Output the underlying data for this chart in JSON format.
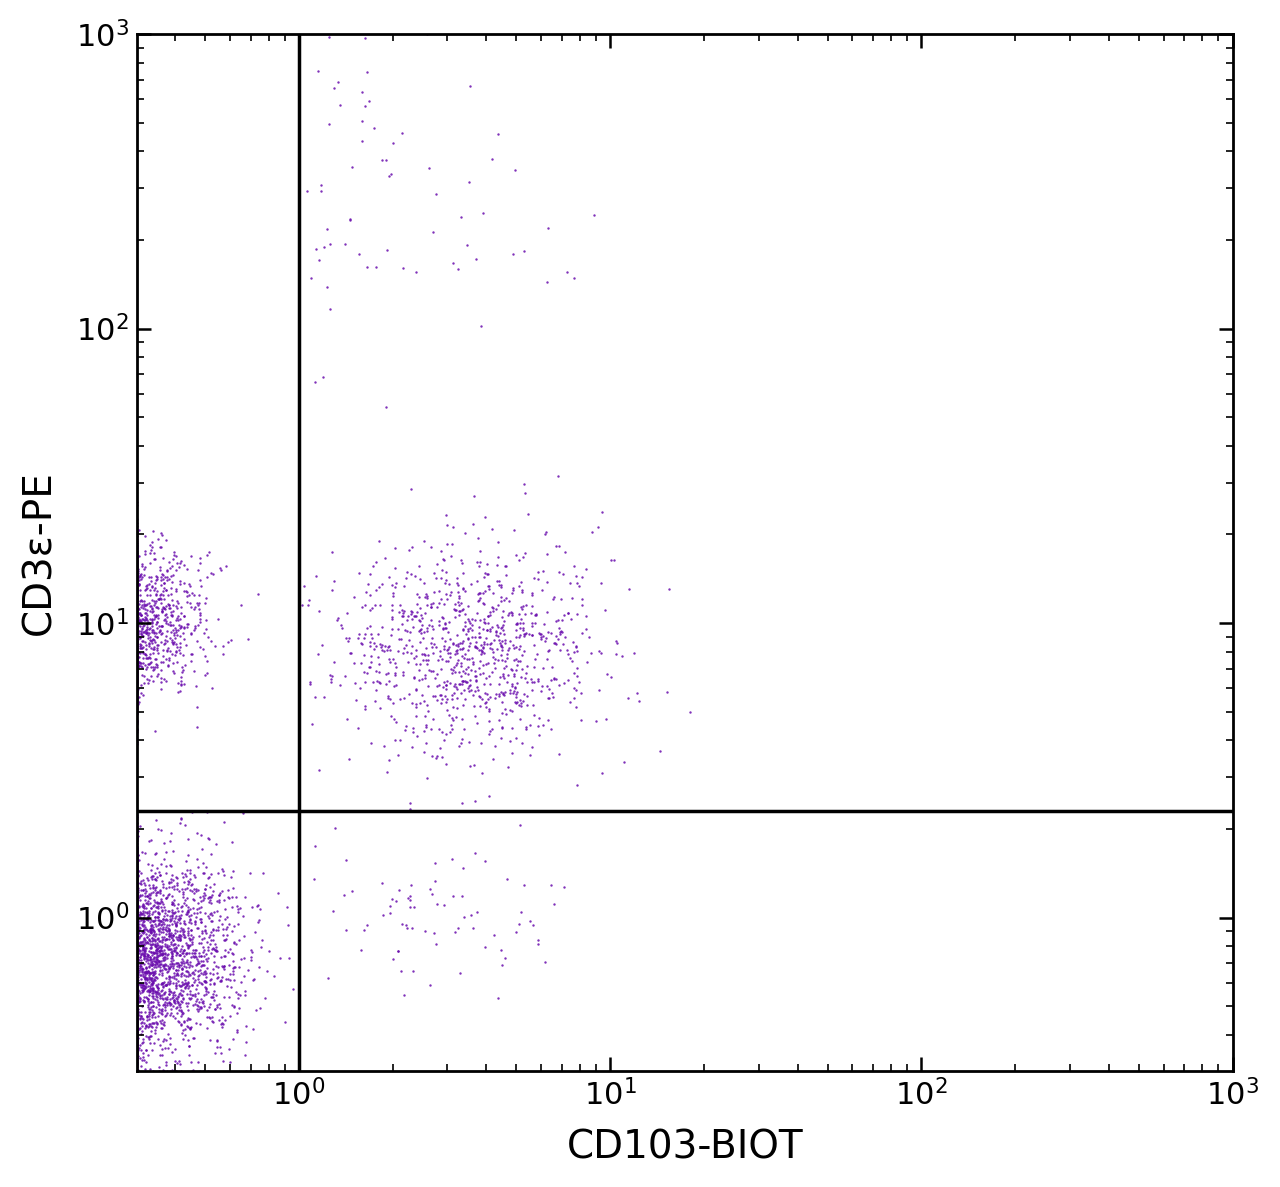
{
  "xlabel": "CD103-BIOT",
  "ylabel": "CD3ε-PE",
  "dot_color": "#6A0DAD",
  "background_color": "#ffffff",
  "xline": 1.0,
  "yline": 2.3,
  "xlim_log": [
    -0.52,
    3.0
  ],
  "ylim_log": [
    -0.52,
    3.0
  ],
  "xlabel_fontsize": 28,
  "ylabel_fontsize": 28,
  "tick_fontsize": 22,
  "dot_size": 3.0,
  "dot_alpha": 0.85,
  "seed": 42,
  "n1": 4000,
  "n2": 2000,
  "n3": 1000,
  "n4": 60,
  "n5": 15
}
